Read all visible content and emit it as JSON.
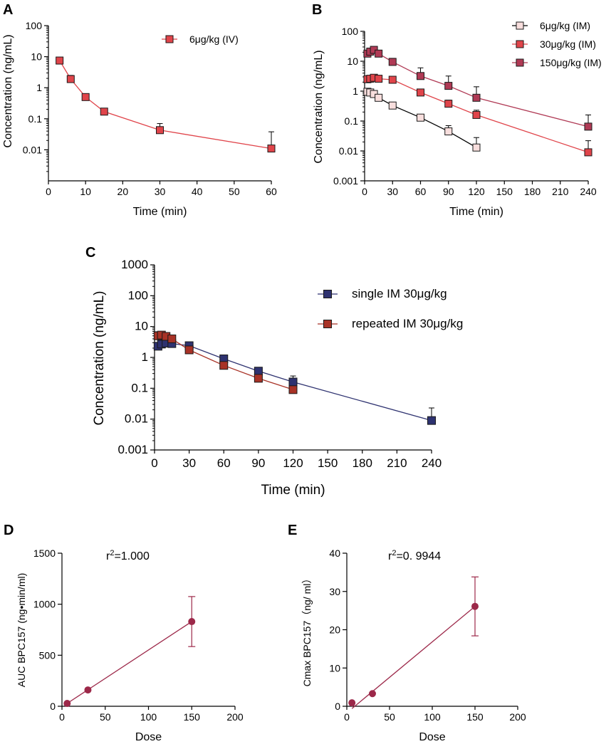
{
  "panel_labels": [
    "A",
    "B",
    "C",
    "D",
    "E"
  ],
  "chart_data": [
    {
      "id": "A",
      "type": "line",
      "yscale": "log",
      "xlabel": "Time (min)",
      "ylabel": "Concentration (ng/mL)",
      "xlim": [
        0,
        60
      ],
      "ylim": [
        0.001,
        100
      ],
      "xticks": [
        0,
        10,
        20,
        30,
        40,
        50,
        60
      ],
      "yticks": [
        0.01,
        0.1,
        1,
        10,
        100
      ],
      "ytick_labels": [
        "0.01",
        "0.1",
        "1",
        "10",
        "100"
      ],
      "series": [
        {
          "name": "6μg/kg (IV)",
          "color": "#e0444a",
          "marker": "square",
          "x": [
            3,
            6,
            10,
            15,
            30,
            60
          ],
          "y": [
            7.5,
            1.9,
            0.5,
            0.17,
            0.043,
            0.011
          ],
          "err_up": [
            9.5,
            2.5,
            0.55,
            0.19,
            0.07,
            0.038
          ],
          "err_down": [
            6.0,
            1.4,
            0.45,
            0.15,
            0.03,
            0.011
          ]
        }
      ]
    },
    {
      "id": "B",
      "type": "line",
      "yscale": "log",
      "xlabel": "Time (min)",
      "ylabel": "Concentration (ng/mL)",
      "xlim": [
        0,
        240
      ],
      "ylim": [
        0.001,
        100
      ],
      "xticks": [
        0,
        30,
        60,
        90,
        120,
        150,
        180,
        210,
        240
      ],
      "yticks": [
        0.001,
        0.01,
        0.1,
        1,
        10,
        100
      ],
      "ytick_labels": [
        "0.001",
        "0.01",
        "0.1",
        "1",
        "10",
        "100"
      ],
      "series": [
        {
          "name": "6μg/kg (IM)",
          "color": "#f8dedd",
          "marker": "square",
          "x": [
            3,
            6,
            10,
            15,
            30,
            60,
            90,
            120
          ],
          "y": [
            0.95,
            0.9,
            0.8,
            0.6,
            0.33,
            0.13,
            0.045,
            0.013
          ],
          "err_up": [
            1.25,
            1.15,
            0.95,
            0.75,
            0.42,
            0.16,
            0.07,
            0.028
          ],
          "err_down": [
            0.95,
            0.9,
            0.8,
            0.6,
            0.33,
            0.13,
            0.045,
            0.013
          ]
        },
        {
          "name": "30μg/kg (IM)",
          "color": "#e0444a",
          "marker": "square",
          "x": [
            3,
            6,
            10,
            15,
            30,
            60,
            90,
            120,
            240
          ],
          "y": [
            2.5,
            2.6,
            2.8,
            2.6,
            2.4,
            0.9,
            0.38,
            0.16,
            0.009
          ],
          "err_up": [
            3.0,
            3.1,
            3.2,
            3.0,
            2.8,
            1.1,
            0.5,
            0.23,
            0.022
          ],
          "err_down": [
            2.5,
            2.6,
            2.8,
            2.6,
            2.4,
            0.9,
            0.38,
            0.16,
            0.009
          ]
        },
        {
          "name": "150μg/kg (IM)",
          "color": "#b03a55",
          "marker": "square",
          "x": [
            3,
            6,
            10,
            15,
            30,
            60,
            90,
            120,
            240
          ],
          "y": [
            18,
            21,
            24,
            18,
            9.5,
            3.2,
            1.5,
            0.6,
            0.065
          ],
          "err_up": [
            21,
            25,
            28,
            22,
            12.5,
            6.0,
            3.2,
            1.4,
            0.16
          ],
          "err_down": [
            18,
            21,
            24,
            18,
            9.5,
            3.2,
            1.5,
            0.6,
            0.065
          ]
        }
      ]
    },
    {
      "id": "C",
      "type": "line",
      "yscale": "log",
      "xlabel": "Time (min)",
      "ylabel": "Concentration (ng/mL)",
      "xlim": [
        0,
        240
      ],
      "ylim": [
        0.001,
        1000
      ],
      "xticks": [
        0,
        30,
        60,
        90,
        120,
        150,
        180,
        210,
        240
      ],
      "yticks": [
        0.001,
        0.01,
        0.1,
        1,
        10,
        100,
        1000
      ],
      "ytick_labels": [
        "0.001",
        "0.01",
        "0.1",
        "1",
        "10",
        "100",
        "1000"
      ],
      "series": [
        {
          "name": "single IM 30μg/kg",
          "color": "#2e3270",
          "marker": "square",
          "x": [
            3,
            6,
            10,
            15,
            30,
            60,
            90,
            120,
            240
          ],
          "y": [
            2.3,
            2.7,
            2.9,
            2.8,
            2.4,
            0.9,
            0.36,
            0.16,
            0.009
          ],
          "err_up": [
            2.8,
            3.2,
            3.4,
            3.3,
            2.9,
            1.1,
            0.45,
            0.25,
            0.023
          ],
          "err_down": [
            2.3,
            2.7,
            2.9,
            2.8,
            2.4,
            0.9,
            0.36,
            0.16,
            0.009
          ]
        },
        {
          "name": "repeated IM 30μg/kg",
          "color": "#a83226",
          "marker": "square",
          "x": [
            3,
            6,
            10,
            15,
            30,
            60,
            90,
            120
          ],
          "y": [
            5.0,
            5.3,
            4.8,
            4.0,
            1.75,
            0.55,
            0.21,
            0.09
          ],
          "err_up": [
            6.8,
            6.8,
            6.0,
            5.2,
            2.1,
            0.65,
            0.26,
            0.11
          ],
          "err_down": [
            5.0,
            5.3,
            4.8,
            4.0,
            1.75,
            0.55,
            0.21,
            0.09
          ]
        }
      ]
    },
    {
      "id": "D",
      "type": "scatter",
      "xlabel": "Dose",
      "ylabel": "AUC BPC157 (ng•min/ml)",
      "xlim": [
        0,
        200
      ],
      "ylim": [
        0,
        1500
      ],
      "xticks": [
        0,
        50,
        100,
        150,
        200
      ],
      "yticks": [
        0,
        500,
        1000,
        1500
      ],
      "color": "#9c2849",
      "annotation_prefix": "r",
      "annotation_sup": "2",
      "annotation_value": "=1.000",
      "points": [
        {
          "x": 6,
          "y": 28
        },
        {
          "x": 30,
          "y": 160
        },
        {
          "x": 150,
          "y": 830,
          "err_up": 1075,
          "err_down": 585
        }
      ],
      "fit_line": {
        "x": [
          6,
          150
        ],
        "y": [
          28,
          830
        ]
      }
    },
    {
      "id": "E",
      "type": "scatter",
      "xlabel": "Dose",
      "ylabel": "Cmax BPC157（ng/ ml）",
      "xlim": [
        0,
        200
      ],
      "ylim": [
        0,
        40
      ],
      "xticks": [
        0,
        50,
        100,
        150,
        200
      ],
      "yticks": [
        0,
        10,
        20,
        30,
        40
      ],
      "color": "#9c2849",
      "annotation_prefix": "r",
      "annotation_sup": "2",
      "annotation_value": "=0. 9944",
      "points": [
        {
          "x": 6,
          "y": 0.9
        },
        {
          "x": 30,
          "y": 3.3
        },
        {
          "x": 150,
          "y": 26.1,
          "err_up": 33.8,
          "err_down": 18.4
        }
      ],
      "fit_line": {
        "x": [
          6,
          150
        ],
        "y": [
          -0.6,
          26.1
        ]
      }
    }
  ]
}
